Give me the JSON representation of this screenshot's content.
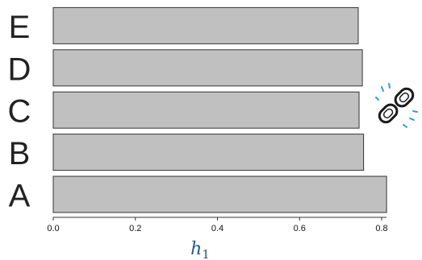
{
  "chart_data": {
    "type": "bar",
    "orientation": "horizontal",
    "categories": [
      "A",
      "B",
      "C",
      "D",
      "E"
    ],
    "values": [
      0.812,
      0.756,
      0.745,
      0.753,
      0.743
    ],
    "xlabel": "h",
    "xlabel_subscript": "1",
    "xlim": [
      0.0,
      0.8
    ],
    "xticks": [
      0.0,
      0.2,
      0.4,
      0.6,
      0.8
    ],
    "xtick_labels": [
      "0.0",
      "0.2",
      "0.4",
      "0.6",
      "0.8"
    ],
    "grid": false,
    "bar_color": "#c0c0c0",
    "bar_edge_color": "#333333",
    "axis_label_color": "#1f5a8a"
  },
  "decorations": {
    "icon": "broken-link-icon",
    "icon_color": "#1a1a1a",
    "accent_color": "#2a9fd6"
  }
}
